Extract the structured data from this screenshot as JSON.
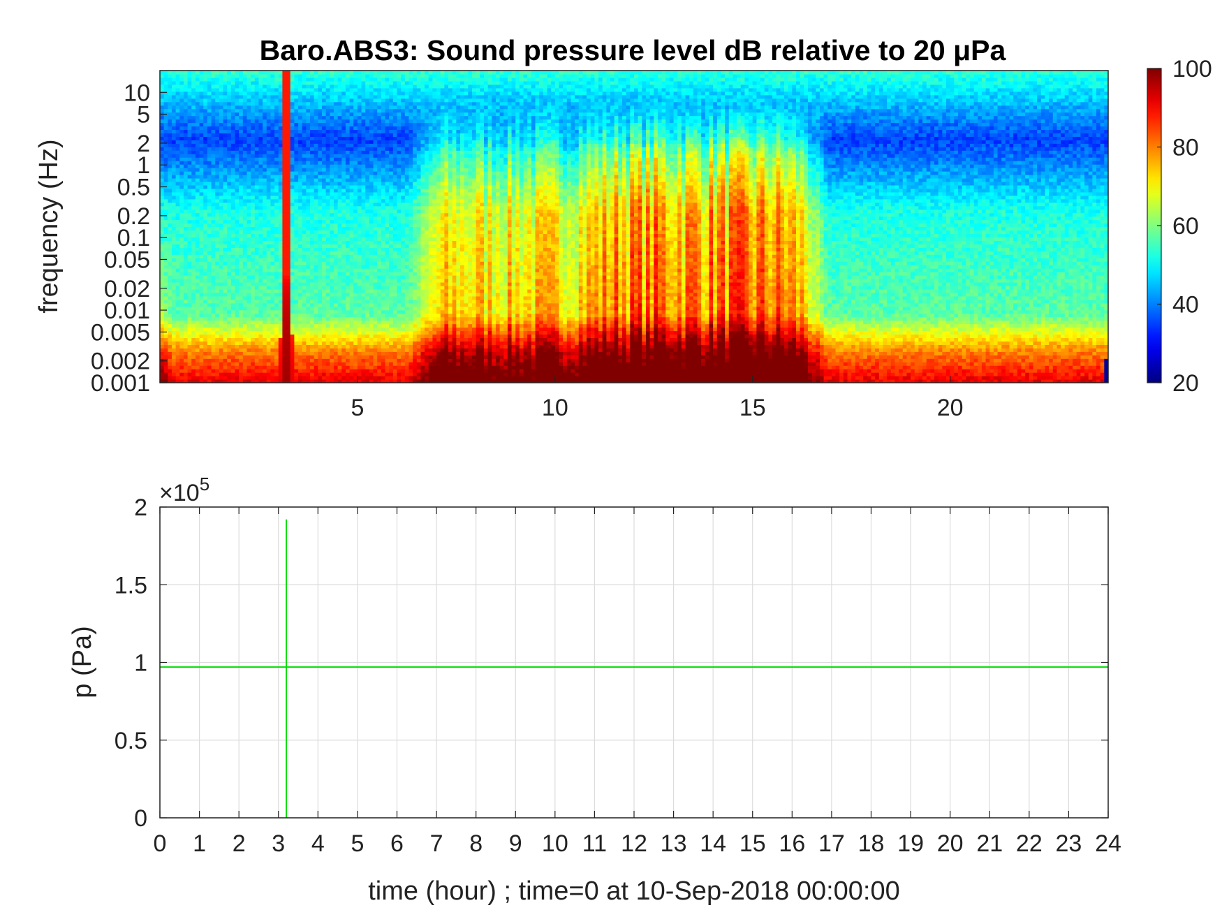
{
  "chart_data": [
    {
      "type": "heatmap",
      "title": "Baro.ABS3: Sound pressure level dB relative to 20 μPa",
      "ylabel": "frequency (Hz)",
      "xlabel": "",
      "x_range": [
        0,
        24
      ],
      "x_ticks": [
        5,
        10,
        15,
        20
      ],
      "y_scale": "log",
      "y_range": [
        0.001,
        20
      ],
      "y_ticks": [
        0.001,
        0.002,
        0.005,
        0.01,
        0.02,
        0.05,
        0.1,
        0.2,
        0.5,
        1,
        2,
        5,
        10
      ],
      "y_tick_labels": [
        "0.001",
        "0.002",
        "0.005",
        "0.01",
        "0.02",
        "0.05",
        "0.1",
        "0.2",
        "0.5",
        "1",
        "2",
        "5",
        "10"
      ],
      "colorbar": {
        "colormap": "jet",
        "range": [
          20,
          100
        ],
        "ticks": [
          20,
          40,
          60,
          80,
          100
        ],
        "tick_labels": [
          "20",
          "40",
          "60",
          "80",
          "100"
        ]
      },
      "features": {
        "spike_time_hour": 3.2,
        "active_period_hours": [
          6.5,
          16.8
        ],
        "peak_activity_hours": [
          12,
          15.5
        ]
      }
    },
    {
      "type": "line",
      "xlabel": "time (hour) ; time=0 at 10-Sep-2018 00:00:00",
      "ylabel": "p (Pa)",
      "x_range": [
        0,
        24
      ],
      "x_ticks": [
        0,
        1,
        2,
        3,
        4,
        5,
        6,
        7,
        8,
        9,
        10,
        11,
        12,
        13,
        14,
        15,
        16,
        17,
        18,
        19,
        20,
        21,
        22,
        23,
        24
      ],
      "x_tick_labels": [
        "0",
        "1",
        "2",
        "3",
        "4",
        "5",
        "6",
        "7",
        "8",
        "9",
        "10",
        "11",
        "12",
        "13",
        "14",
        "15",
        "16",
        "17",
        "18",
        "19",
        "20",
        "21",
        "22",
        "23",
        "24"
      ],
      "y_range": [
        0,
        200000
      ],
      "y_ticks": [
        0,
        50000,
        100000,
        150000,
        200000
      ],
      "y_tick_labels": [
        "0",
        "0.5",
        "1",
        "1.5",
        "2"
      ],
      "y_exponent_label": "×10",
      "y_exponent_power": "5",
      "grid": true,
      "series": [
        {
          "color": "#00dd00",
          "baseline_value": 97000,
          "spike": {
            "x": 3.2,
            "y_min": 0,
            "y_max": 192000
          }
        }
      ]
    }
  ]
}
